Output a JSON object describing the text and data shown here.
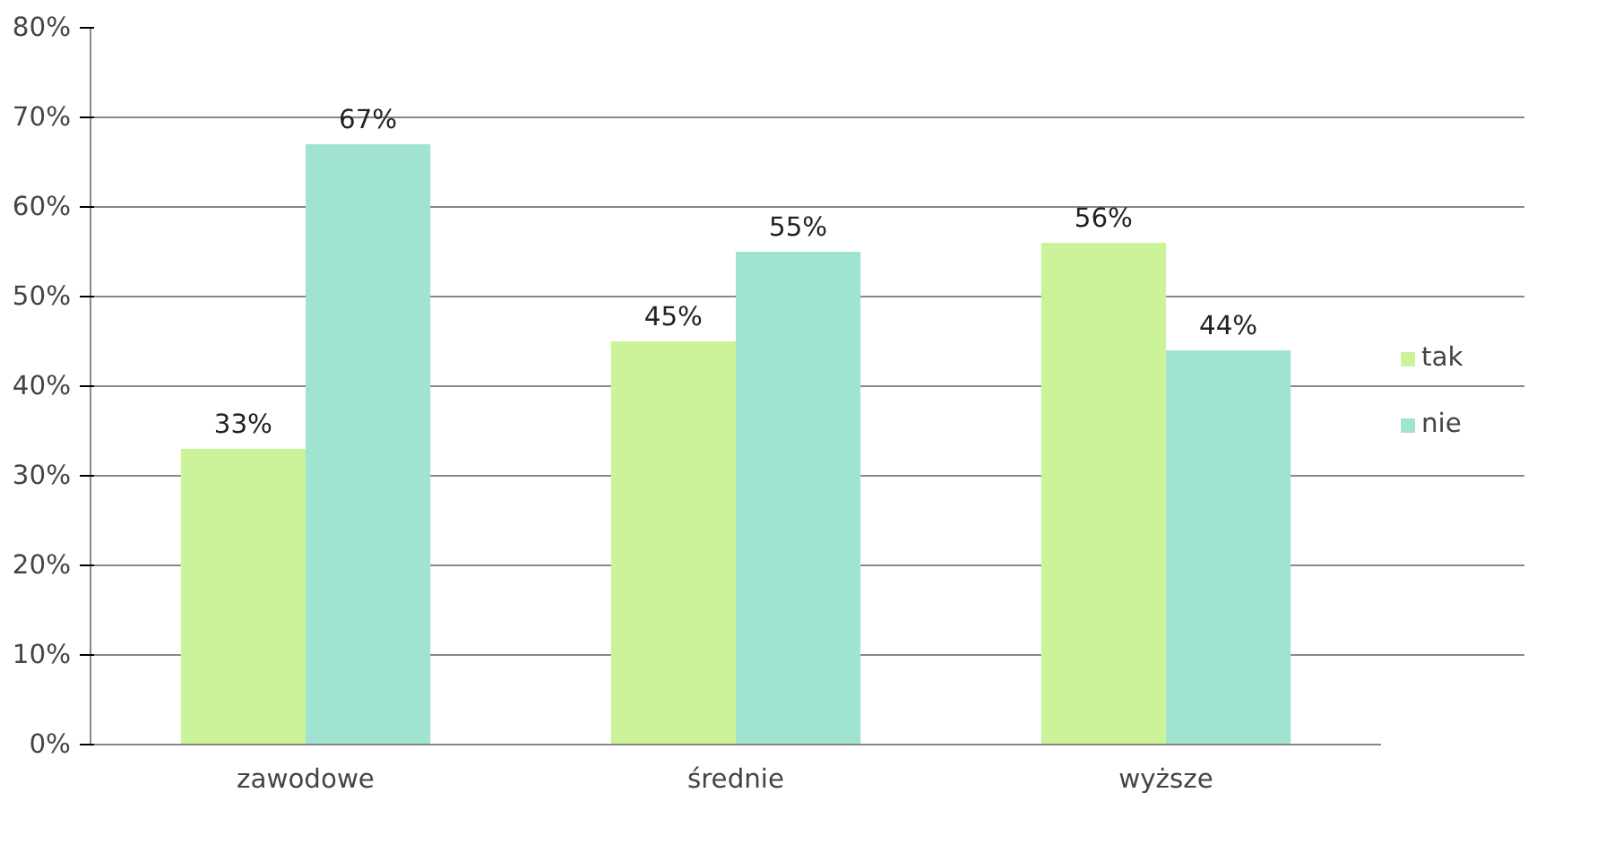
{
  "chart_data": {
    "type": "bar",
    "categories": [
      "zawodowe",
      "średnie",
      "wyższe"
    ],
    "series": [
      {
        "name": "tak",
        "color": "#ccf29a",
        "values": [
          33,
          45,
          56
        ],
        "value_labels": [
          "33%",
          "45%",
          "56%"
        ]
      },
      {
        "name": "nie",
        "color": "#a0e3d0",
        "values": [
          67,
          55,
          44
        ],
        "value_labels": [
          "67%",
          "55%",
          "44%"
        ]
      }
    ],
    "ylim": [
      0,
      80
    ],
    "yticks": [
      {
        "value": 0,
        "label": "0%"
      },
      {
        "value": 10,
        "label": "10%"
      },
      {
        "value": 20,
        "label": "20%"
      },
      {
        "value": 30,
        "label": "30%"
      },
      {
        "value": 40,
        "label": "40%"
      },
      {
        "value": 50,
        "label": "50%"
      },
      {
        "value": 60,
        "label": "60%"
      },
      {
        "value": 70,
        "label": "70%"
      },
      {
        "value": 80,
        "label": "80%"
      }
    ],
    "grid": "y",
    "legend": "right"
  }
}
